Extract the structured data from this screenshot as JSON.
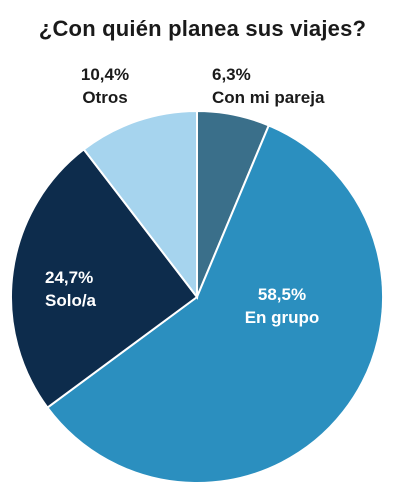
{
  "chart_data": {
    "type": "pie",
    "title": "¿Con quién planea sus viajes?",
    "start_angle_deg": 0,
    "direction": "clockwise",
    "slices": [
      {
        "label": "Con mi pareja",
        "value": 6.3,
        "value_text": "6,3%",
        "color": "#3a6f8a",
        "label_color": "#1a1a1a",
        "label_outside": true
      },
      {
        "label": "En grupo",
        "value": 58.5,
        "value_text": "58,5%",
        "color": "#2b8fbf",
        "label_color": "#ffffff",
        "label_outside": false
      },
      {
        "label": "Solo/a",
        "value": 24.7,
        "value_text": "24,7%",
        "color": "#0d2c4c",
        "label_color": "#ffffff",
        "label_outside": false
      },
      {
        "label": "Otros",
        "value": 10.4,
        "value_text": "10,4%",
        "color": "#a6d4ee",
        "label_color": "#1a1a1a",
        "label_outside": true
      }
    ]
  }
}
